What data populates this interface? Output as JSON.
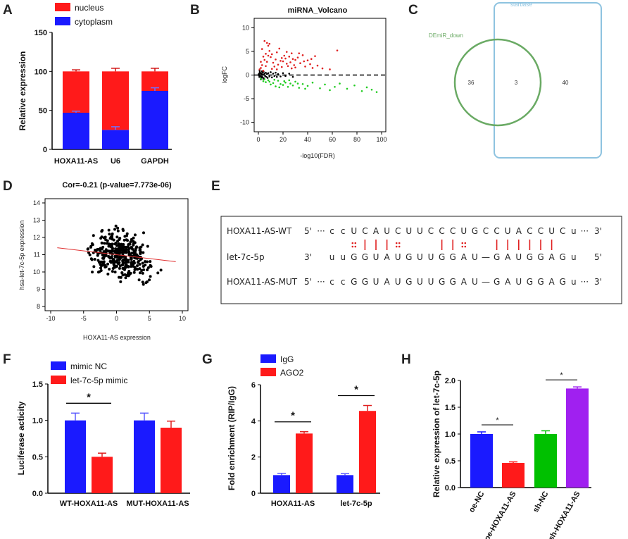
{
  "colors": {
    "red": "#ff1a1a",
    "blue": "#1a1aff",
    "green": "#00c000",
    "purple": "#a020f0",
    "sig_red": "#e02020",
    "sig_green": "#22cc22",
    "venn_green": "#6aaa64",
    "venn_blue": "#8ec3e0",
    "trend": "#e03030"
  },
  "panel_labels": {
    "A": "A",
    "B": "B",
    "C": "C",
    "D": "D",
    "E": "E",
    "F": "F",
    "G": "G",
    "H": "H"
  },
  "chart_data": [
    {
      "id": "A",
      "type": "bar",
      "stacked": true,
      "categories": [
        "HOXA11-AS",
        "U6",
        "GAPDH"
      ],
      "series": [
        {
          "name": "nucleus",
          "values": [
            53,
            75,
            25
          ],
          "color": "#ff1a1a"
        },
        {
          "name": "cytoplasm",
          "values": [
            47,
            25,
            75
          ],
          "color": "#1a1aff"
        }
      ],
      "errors": [
        {
          "nucleus_top": 2,
          "cytoplasm_top": 2
        },
        {
          "nucleus_top": 4,
          "cytoplasm_top": 4
        },
        {
          "nucleus_top": 4,
          "cytoplasm_top": 4
        }
      ],
      "ylabel": "Relative expression",
      "ylim": [
        0,
        150
      ],
      "yticks": [
        "0",
        "50",
        "100",
        "150"
      ]
    },
    {
      "id": "B",
      "type": "scatter",
      "title": "miRNA_Volcano",
      "xlabel": "-log10(FDR)",
      "ylabel": "logFC",
      "xlim": [
        0,
        100
      ],
      "ylim": [
        -12,
        12
      ],
      "xticks": [
        "0",
        "20",
        "40",
        "60",
        "80",
        "100"
      ],
      "yticks": [
        "-10",
        "-5",
        "0",
        "5",
        "10"
      ],
      "up_points": [
        [
          1,
          1.2
        ],
        [
          2,
          1.5
        ],
        [
          3,
          2.1
        ],
        [
          4,
          0.9
        ],
        [
          5,
          3.2
        ],
        [
          6,
          4.5
        ],
        [
          7,
          2.8
        ],
        [
          8,
          6.2
        ],
        [
          9,
          5.1
        ],
        [
          10,
          3.8
        ],
        [
          11,
          4.4
        ],
        [
          12,
          2.6
        ],
        [
          13,
          1.8
        ],
        [
          14,
          3.3
        ],
        [
          15,
          4.8
        ],
        [
          16,
          2.2
        ],
        [
          17,
          5.6
        ],
        [
          18,
          3.0
        ],
        [
          19,
          1.7
        ],
        [
          20,
          2.9
        ],
        [
          21,
          4.1
        ],
        [
          22,
          3.5
        ],
        [
          23,
          2.4
        ],
        [
          24,
          1.9
        ],
        [
          25,
          3.9
        ],
        [
          26,
          2.7
        ],
        [
          27,
          4.6
        ],
        [
          28,
          3.4
        ],
        [
          29,
          2.1
        ],
        [
          30,
          1.6
        ],
        [
          32,
          3.7
        ],
        [
          34,
          2.5
        ],
        [
          36,
          4.2
        ],
        [
          38,
          1.8
        ],
        [
          40,
          3.1
        ],
        [
          42,
          2.3
        ],
        [
          44,
          1.5
        ],
        [
          48,
          2.0
        ],
        [
          52,
          1.4
        ],
        [
          58,
          1.2
        ],
        [
          64,
          5.2
        ],
        [
          5,
          7.2
        ],
        [
          7,
          6.8
        ],
        [
          3,
          5.5
        ],
        [
          9,
          6.6
        ],
        [
          4,
          3.9
        ],
        [
          6,
          1.9
        ],
        [
          2,
          2.8
        ],
        [
          8,
          4.1
        ],
        [
          11,
          1.3
        ],
        [
          15,
          1.2
        ],
        [
          19,
          3.6
        ],
        [
          23,
          4.9
        ],
        [
          27,
          1.4
        ],
        [
          30,
          3.2
        ],
        [
          33,
          4.6
        ],
        [
          37,
          2.9
        ],
        [
          43,
          3.4
        ],
        [
          46,
          4.0
        ]
      ],
      "down_points": [
        [
          2,
          -0.8
        ],
        [
          4,
          -1.3
        ],
        [
          6,
          -1.5
        ],
        [
          8,
          -1.1
        ],
        [
          10,
          -2.0
        ],
        [
          12,
          -1.7
        ],
        [
          14,
          -2.4
        ],
        [
          16,
          -1.2
        ],
        [
          18,
          -1.9
        ],
        [
          20,
          -2.1
        ],
        [
          22,
          -1.6
        ],
        [
          24,
          -2.5
        ],
        [
          26,
          -1.8
        ],
        [
          28,
          -2.2
        ],
        [
          30,
          -1.4
        ],
        [
          33,
          -2.7
        ],
        [
          36,
          -1.9
        ],
        [
          40,
          -2.3
        ],
        [
          44,
          -1.6
        ],
        [
          50,
          -2.8
        ],
        [
          54,
          -2.0
        ],
        [
          58,
          -3.2
        ],
        [
          62,
          -2.5
        ],
        [
          66,
          -1.8
        ],
        [
          72,
          -2.9
        ],
        [
          78,
          -2.2
        ],
        [
          84,
          -3.4
        ],
        [
          88,
          -2.6
        ],
        [
          92,
          -3.1
        ],
        [
          96,
          -3.6
        ],
        [
          5,
          -0.9
        ],
        [
          9,
          -1.4
        ],
        [
          13,
          -1.0
        ],
        [
          17,
          -2.6
        ],
        [
          21,
          -1.3
        ],
        [
          25,
          -1.1
        ],
        [
          32,
          -1.8
        ],
        [
          38,
          -2.9
        ]
      ],
      "ns_points": [
        [
          0.5,
          0.3
        ],
        [
          0.8,
          -0.4
        ],
        [
          1.2,
          0.6
        ],
        [
          1.5,
          -0.2
        ],
        [
          1.8,
          0.4
        ],
        [
          2.2,
          -0.6
        ],
        [
          2.5,
          0.2
        ],
        [
          2.8,
          -0.3
        ],
        [
          3.2,
          0.5
        ],
        [
          3.5,
          -0.5
        ],
        [
          3.8,
          0.1
        ],
        [
          4.2,
          0.7
        ],
        [
          4.5,
          -0.7
        ],
        [
          5.0,
          0.3
        ],
        [
          5.5,
          -0.2
        ],
        [
          6.0,
          0.5
        ],
        [
          6.5,
          -0.4
        ],
        [
          7.0,
          0.2
        ],
        [
          7.5,
          -0.6
        ],
        [
          8.0,
          0.4
        ],
        [
          9.0,
          -0.3
        ],
        [
          10.0,
          0.6
        ],
        [
          11.0,
          -0.5
        ],
        [
          12.0,
          0.3
        ],
        [
          13.0,
          -0.2
        ],
        [
          14.0,
          0.5
        ],
        [
          15.0,
          -0.4
        ],
        [
          16.0,
          0.2
        ],
        [
          18.0,
          -0.3
        ],
        [
          20.0,
          0.4
        ],
        [
          22.0,
          -0.2
        ],
        [
          25.0,
          0.3
        ],
        [
          28.0,
          -0.4
        ],
        [
          1.0,
          0.9
        ],
        [
          2.0,
          -0.9
        ],
        [
          3.0,
          0.8
        ],
        [
          4.0,
          -0.8
        ],
        [
          0.3,
          0.1
        ],
        [
          0.6,
          -0.1
        ],
        [
          1.4,
          0.0
        ]
      ],
      "threshold_y": 0
    },
    {
      "id": "C",
      "type": "venn",
      "sets": [
        {
          "label": "DEmiR_down",
          "only": "36"
        },
        {
          "label": "starbase",
          "only": "40"
        }
      ],
      "intersection": "3"
    },
    {
      "id": "D",
      "type": "scatter",
      "title": "Cor=-0.21 (p-value=7.773e-06)",
      "xlabel": "HOXA11-AS expression",
      "ylabel": "hsa-let-7c-5p expression",
      "xlim": [
        -10,
        10
      ],
      "ylim": [
        8,
        14
      ],
      "xticks": [
        "-10",
        "-5",
        "0",
        "5",
        "10"
      ],
      "yticks": [
        "8",
        "9",
        "10",
        "11",
        "12",
        "13",
        "14"
      ],
      "trend": {
        "intercept": 11.0,
        "slope": -0.045,
        "from_x": -9,
        "to_x": 9
      }
    },
    {
      "id": "F",
      "type": "bar",
      "categories": [
        "WT-HOXA11-AS",
        "MUT-HOXA11-AS"
      ],
      "series": [
        {
          "name": "mimic NC",
          "values": [
            1.0,
            1.0
          ],
          "errors": [
            0.1,
            0.1
          ],
          "color": "#1a1aff"
        },
        {
          "name": "let-7c-5p mimic",
          "values": [
            0.5,
            0.9
          ],
          "errors": [
            0.05,
            0.09
          ],
          "color": "#ff1a1a"
        }
      ],
      "ylabel": "Luciferase acticity",
      "ylim": [
        0,
        1.5
      ],
      "yticks": [
        "0.0",
        "0.5",
        "1.0",
        "1.5"
      ],
      "significance": [
        {
          "category": 0,
          "label": "*"
        }
      ]
    },
    {
      "id": "G",
      "type": "bar",
      "categories": [
        "HOXA11-AS",
        "let-7c-5p"
      ],
      "series": [
        {
          "name": "IgG",
          "values": [
            1.0,
            1.0
          ],
          "errors": [
            0.1,
            0.08
          ],
          "color": "#1a1aff"
        },
        {
          "name": "AGO2",
          "values": [
            3.3,
            4.55
          ],
          "errors": [
            0.1,
            0.3
          ],
          "color": "#ff1a1a"
        }
      ],
      "ylabel": "Fold enrichment (RIP/IgG)",
      "ylim": [
        0,
        6
      ],
      "yticks": [
        "0",
        "2",
        "4",
        "6"
      ],
      "significance": [
        {
          "category": 0,
          "label": "*"
        },
        {
          "category": 1,
          "label": "*"
        }
      ]
    },
    {
      "id": "H",
      "type": "bar",
      "categories": [
        "oe-NC",
        "oe-HOXA11-AS",
        "sh-NC",
        "sh-HOXA11-AS"
      ],
      "values": [
        1.0,
        0.46,
        1.0,
        1.85
      ],
      "errors": [
        0.04,
        0.02,
        0.06,
        0.03
      ],
      "colors": [
        "#1a1aff",
        "#ff1a1a",
        "#00c000",
        "#a020f0"
      ],
      "ylabel": "Relative expression of let-7c-5p",
      "ylim": [
        0,
        2.0
      ],
      "yticks": [
        "0.0",
        "0.5",
        "1.0",
        "1.5",
        "2.0"
      ],
      "significance": [
        {
          "pair": [
            0,
            1
          ],
          "label": "*"
        },
        {
          "pair": [
            2,
            3
          ],
          "label": "*"
        }
      ]
    }
  ],
  "panelE": {
    "rows": [
      {
        "name": "HOXA11-AS-WT",
        "end5": "5'",
        "seq": [
          "···",
          "c",
          "c",
          "U",
          "C",
          "A",
          "U",
          "C",
          "U",
          "U",
          "C",
          "C",
          "C",
          "U",
          "G",
          "C",
          "C",
          "U",
          "A",
          "C",
          "C",
          "U",
          "C",
          "u",
          "···"
        ],
        "end3": "3'"
      },
      {
        "name": "let-7c-5p",
        "end5": "3'",
        "seq": [
          "",
          "u",
          "u",
          "G",
          "G",
          "U",
          "A",
          "U",
          "G",
          "U",
          "U",
          "G",
          "G",
          "A",
          "U",
          "—",
          "G",
          "A",
          "U",
          "G",
          "G",
          "A",
          "G",
          "u",
          ""
        ],
        "end3": "5'"
      },
      {
        "name": "HOXA11-AS-MUT",
        "end5": "5'",
        "seq": [
          "···",
          "c",
          "c",
          "G",
          "G",
          "U",
          "A",
          "U",
          "G",
          "U",
          "U",
          "G",
          "G",
          "A",
          "U",
          "—",
          "G",
          "A",
          "U",
          "G",
          "G",
          "A",
          "G",
          "u",
          "···"
        ],
        "end3": "3'"
      }
    ],
    "pairing": [
      "",
      "",
      "",
      ":",
      "|",
      "|",
      "|",
      ":",
      "",
      "",
      "",
      "|",
      "|",
      ":",
      "",
      "",
      "|",
      "|",
      "|",
      "|",
      "|",
      "|",
      "",
      "",
      ""
    ]
  }
}
